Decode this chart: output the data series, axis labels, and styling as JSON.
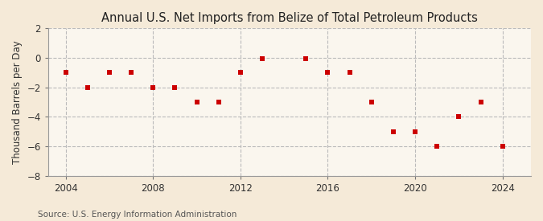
{
  "title": "Annual U.S. Net Imports from Belize of Total Petroleum Products",
  "ylabel": "Thousand Barrels per Day",
  "source": "Source: U.S. Energy Information Administration",
  "background_color": "#f5ead8",
  "plot_bg_color": "#faf6ee",
  "marker_color": "#cc0000",
  "grid_color": "#bbbbbb",
  "years": [
    2004,
    2005,
    2006,
    2007,
    2008,
    2009,
    2010,
    2011,
    2012,
    2013,
    2015,
    2016,
    2017,
    2018,
    2019,
    2020,
    2021,
    2022,
    2023,
    2024
  ],
  "values": [
    -1.0,
    -2.0,
    -1.0,
    -1.0,
    -2.0,
    -2.0,
    -3.0,
    -3.0,
    -1.0,
    -0.05,
    -0.05,
    -1.0,
    -1.0,
    -3.0,
    -5.0,
    -5.0,
    -6.0,
    -4.0,
    -3.0,
    -6.0
  ],
  "ylim": [
    -8,
    2
  ],
  "yticks": [
    -8,
    -6,
    -4,
    -2,
    0,
    2
  ],
  "xlim": [
    2003.2,
    2025.3
  ],
  "xticks": [
    2004,
    2008,
    2012,
    2016,
    2020,
    2024
  ],
  "title_fontsize": 10.5,
  "label_fontsize": 8.5,
  "tick_fontsize": 8.5,
  "source_fontsize": 7.5
}
